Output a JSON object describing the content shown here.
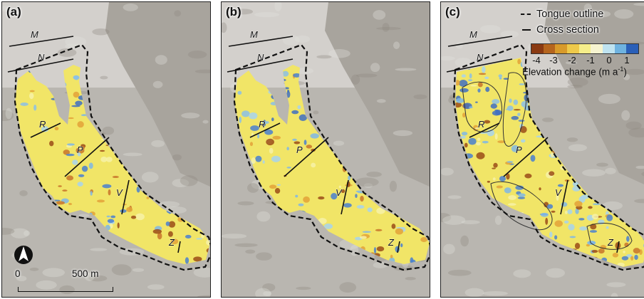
{
  "panels": [
    {
      "label": "(a)",
      "variant": "partial"
    },
    {
      "label": "(b)",
      "variant": "partial"
    },
    {
      "label": "(c)",
      "variant": "full"
    }
  ],
  "section_labels": [
    "M",
    "N",
    "R",
    "P",
    "V",
    "Z"
  ],
  "legend": {
    "tongue_outline": "Tongue outline",
    "cross_section": "Cross section",
    "colorbar_ticks": [
      "-4",
      "-3",
      "-2",
      "-1",
      "0",
      "1"
    ],
    "colorbar_title": "Elevation change (m a",
    "colorbar_title_sup": "-1",
    "colorbar_title_end": ")",
    "colorbar_colors": [
      "#8a3a12",
      "#b5651d",
      "#d89a2a",
      "#eec94a",
      "#f6ee8a",
      "#f7f4d0",
      "#bfe3f0",
      "#6fb3e0",
      "#2a5fb8"
    ]
  },
  "scale": {
    "zero": "0",
    "length_label": "500 m"
  },
  "north_arrow": "north-arrow-icon",
  "colors": {
    "ice_yellow": "#f1e567",
    "thinning_brown": "#a0521c",
    "thickening_blue": "#3f78c9",
    "background_rock": "#b9b6b0"
  }
}
